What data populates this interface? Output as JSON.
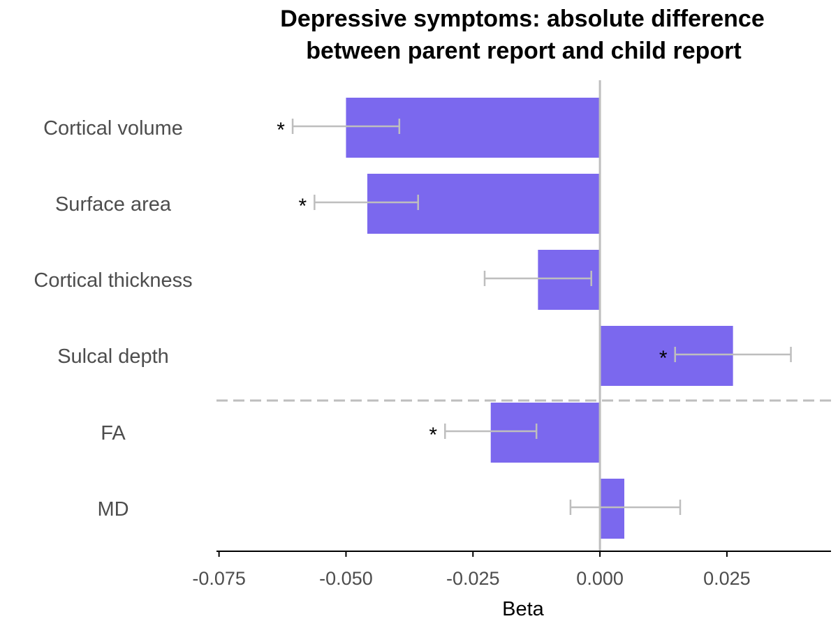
{
  "chart_data": {
    "type": "bar",
    "orientation": "horizontal",
    "title_lines": [
      "Depressive symptoms: absolute difference",
      "between parent report and child report"
    ],
    "xlabel": "Beta",
    "ylabel": "",
    "xlim": [
      -0.0755,
      0.0455
    ],
    "xticks": [
      -0.075,
      -0.05,
      -0.025,
      0.0,
      0.025
    ],
    "xtick_labels": [
      "-0.075",
      "-0.050",
      "-0.025",
      "0.000",
      "0.025"
    ],
    "categories": [
      "Cortical volume",
      "Surface area",
      "Cortical thickness",
      "Sulcal depth",
      "FA",
      "MD"
    ],
    "values": [
      -0.05,
      -0.0458,
      -0.0122,
      0.0262,
      -0.0215,
      0.0048
    ],
    "ci_lower": [
      -0.0605,
      -0.0562,
      -0.0227,
      0.0148,
      -0.0305,
      -0.0058
    ],
    "ci_upper": [
      -0.0395,
      -0.0358,
      -0.0017,
      0.0376,
      -0.0125,
      0.0158
    ],
    "significance": [
      "*",
      "*",
      "",
      "*",
      "*",
      ""
    ],
    "group_divider_after_index": 3,
    "colors": {
      "bar": "#7B68EE",
      "error_bar": "#BEBEBE",
      "zero_line": "#BEBEBE",
      "divider": "#BEBEBE",
      "axis_line": "#000000"
    },
    "grid": false,
    "legend": "none"
  }
}
